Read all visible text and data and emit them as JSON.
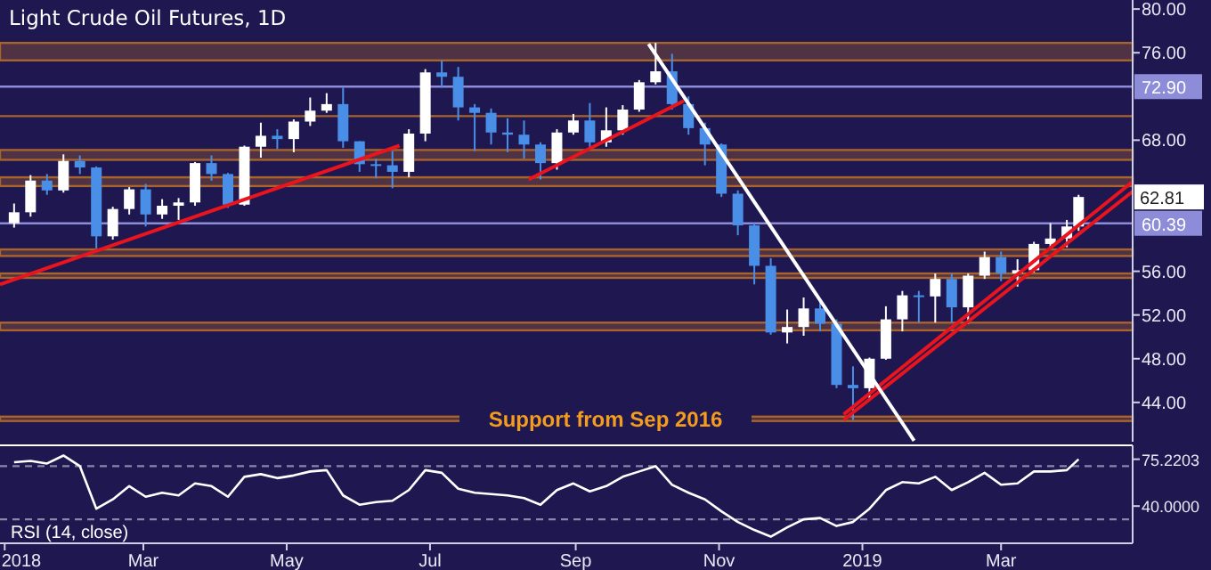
{
  "chart_data": [
    {
      "type": "candlestick",
      "title": "Light Crude Oil Futures, 1D",
      "tick_labels": "y",
      "xlim": [
        "2017-12-30",
        "2019-04-26"
      ],
      "ylim": [
        40.4,
        80.5
      ],
      "yticks": [
        {
          "value": 44,
          "label": "44.00"
        },
        {
          "value": 48,
          "label": "48.00"
        },
        {
          "value": 52,
          "label": "52.00"
        },
        {
          "value": 56,
          "label": "56.00"
        },
        {
          "value": 68,
          "label": "68.00"
        },
        {
          "value": 76,
          "label": "76.00"
        },
        {
          "value": 80,
          "label": "80.00"
        }
      ],
      "x": [
        "2018-01-05",
        "2018-01-12",
        "2018-01-19",
        "2018-01-26",
        "2018-02-02",
        "2018-02-09",
        "2018-02-16",
        "2018-02-23",
        "2018-03-02",
        "2018-03-09",
        "2018-03-16",
        "2018-03-23",
        "2018-03-30",
        "2018-04-06",
        "2018-04-13",
        "2018-04-20",
        "2018-04-27",
        "2018-05-04",
        "2018-05-11",
        "2018-05-18",
        "2018-05-25",
        "2018-06-01",
        "2018-06-08",
        "2018-06-15",
        "2018-06-22",
        "2018-06-29",
        "2018-07-06",
        "2018-07-13",
        "2018-07-20",
        "2018-07-27",
        "2018-08-03",
        "2018-08-10",
        "2018-08-17",
        "2018-08-24",
        "2018-08-31",
        "2018-09-07",
        "2018-09-14",
        "2018-09-21",
        "2018-09-28",
        "2018-10-05",
        "2018-10-12",
        "2018-10-19",
        "2018-10-26",
        "2018-11-02",
        "2018-11-09",
        "2018-11-16",
        "2018-11-23",
        "2018-11-30",
        "2018-12-07",
        "2018-12-14",
        "2018-12-21",
        "2018-12-28",
        "2019-01-04",
        "2019-01-11",
        "2019-01-18",
        "2019-01-25",
        "2019-02-01",
        "2019-02-08",
        "2019-02-15",
        "2019-02-22",
        "2019-03-01",
        "2019-03-08",
        "2019-03-15",
        "2019-03-22",
        "2019-03-29",
        "2019-04-03"
      ],
      "ohlc": [
        [
          60.4,
          62.2,
          60.0,
          61.4
        ],
        [
          61.4,
          64.8,
          61.0,
          64.3
        ],
        [
          64.3,
          64.9,
          63.0,
          63.4
        ],
        [
          63.4,
          66.7,
          63.2,
          66.1
        ],
        [
          66.1,
          66.6,
          64.9,
          65.5
        ],
        [
          65.5,
          65.6,
          58.1,
          59.2
        ],
        [
          59.2,
          61.9,
          58.9,
          61.7
        ],
        [
          61.7,
          63.7,
          61.2,
          63.5
        ],
        [
          63.5,
          64.0,
          60.1,
          61.2
        ],
        [
          61.2,
          62.6,
          60.8,
          62.0
        ],
        [
          62.0,
          62.7,
          60.7,
          62.3
        ],
        [
          62.3,
          66.0,
          62.0,
          65.9
        ],
        [
          65.9,
          66.6,
          64.3,
          64.9
        ],
        [
          64.9,
          65.0,
          61.8,
          62.1
        ],
        [
          62.1,
          67.5,
          62.0,
          67.4
        ],
        [
          67.4,
          69.6,
          66.4,
          68.4
        ],
        [
          68.4,
          69.0,
          67.2,
          68.1
        ],
        [
          68.1,
          69.9,
          66.9,
          69.7
        ],
        [
          69.7,
          71.9,
          69.3,
          70.7
        ],
        [
          70.7,
          72.3,
          70.5,
          71.3
        ],
        [
          71.3,
          72.8,
          67.3,
          67.9
        ],
        [
          67.9,
          67.9,
          65.1,
          65.8
        ],
        [
          65.8,
          66.3,
          64.5,
          65.7
        ],
        [
          65.7,
          67.0,
          63.6,
          65.1
        ],
        [
          65.1,
          69.0,
          64.6,
          68.6
        ],
        [
          68.6,
          74.5,
          67.9,
          74.2
        ],
        [
          74.2,
          75.3,
          72.8,
          73.8
        ],
        [
          73.8,
          74.7,
          69.8,
          71.0
        ],
        [
          71.0,
          71.3,
          67.0,
          70.5
        ],
        [
          70.5,
          70.9,
          67.6,
          68.7
        ],
        [
          68.7,
          70.0,
          66.9,
          68.5
        ],
        [
          68.5,
          69.8,
          66.3,
          67.6
        ],
        [
          67.6,
          67.8,
          64.4,
          65.9
        ],
        [
          65.9,
          69.0,
          65.3,
          68.7
        ],
        [
          68.7,
          70.4,
          68.5,
          69.8
        ],
        [
          69.8,
          71.4,
          67.1,
          67.8
        ],
        [
          67.8,
          71.0,
          67.4,
          68.9
        ],
        [
          68.9,
          71.2,
          68.5,
          70.8
        ],
        [
          70.8,
          73.5,
          70.6,
          73.3
        ],
        [
          73.3,
          76.9,
          73.1,
          74.3
        ],
        [
          74.3,
          75.9,
          70.8,
          71.3
        ],
        [
          71.3,
          72.0,
          68.5,
          69.1
        ],
        [
          69.1,
          69.6,
          65.7,
          67.6
        ],
        [
          67.6,
          67.7,
          62.8,
          63.1
        ],
        [
          63.1,
          63.4,
          59.3,
          60.2
        ],
        [
          60.2,
          60.4,
          54.8,
          56.5
        ],
        [
          56.5,
          57.2,
          50.2,
          50.4
        ],
        [
          50.4,
          52.5,
          49.4,
          50.9
        ],
        [
          50.9,
          53.6,
          50.1,
          52.6
        ],
        [
          52.6,
          53.3,
          50.5,
          51.2
        ],
        [
          51.2,
          51.6,
          45.3,
          45.6
        ],
        [
          45.6,
          47.3,
          42.4,
          45.3
        ],
        [
          45.3,
          48.1,
          44.4,
          48.0
        ],
        [
          48.0,
          52.8,
          47.9,
          51.6
        ],
        [
          51.6,
          54.2,
          50.5,
          53.8
        ],
        [
          53.8,
          54.2,
          51.3,
          53.7
        ],
        [
          53.7,
          55.8,
          51.3,
          55.3
        ],
        [
          55.3,
          55.8,
          51.3,
          52.7
        ],
        [
          52.7,
          55.8,
          51.2,
          55.6
        ],
        [
          55.6,
          57.8,
          55.3,
          57.3
        ],
        [
          57.3,
          57.8,
          55.1,
          55.8
        ],
        [
          55.8,
          57.1,
          54.6,
          56.1
        ],
        [
          56.1,
          58.7,
          55.9,
          58.5
        ],
        [
          58.5,
          60.4,
          58.1,
          59.0
        ],
        [
          59.0,
          60.7,
          58.2,
          60.1
        ],
        [
          60.1,
          63.0,
          59.7,
          62.8
        ]
      ],
      "colors": [
        "#ffffff",
        "#ffffff",
        "#4a8fe7",
        "#ffffff",
        "#4a8fe7",
        "#4a8fe7",
        "#ffffff",
        "#ffffff",
        "#4a8fe7",
        "#ffffff",
        "#ffffff",
        "#ffffff",
        "#4a8fe7",
        "#4a8fe7",
        "#ffffff",
        "#ffffff",
        "#4a8fe7",
        "#ffffff",
        "#ffffff",
        "#ffffff",
        "#4a8fe7",
        "#4a8fe7",
        "#4a8fe7",
        "#4a8fe7",
        "#ffffff",
        "#ffffff",
        "#4a8fe7",
        "#4a8fe7",
        "#4a8fe7",
        "#4a8fe7",
        "#4a8fe7",
        "#4a8fe7",
        "#4a8fe7",
        "#ffffff",
        "#ffffff",
        "#4a8fe7",
        "#ffffff",
        "#ffffff",
        "#ffffff",
        "#ffffff",
        "#4a8fe7",
        "#4a8fe7",
        "#4a8fe7",
        "#4a8fe7",
        "#4a8fe7",
        "#4a8fe7",
        "#4a8fe7",
        "#ffffff",
        "#ffffff",
        "#4a8fe7",
        "#4a8fe7",
        "#4a8fe7",
        "#ffffff",
        "#ffffff",
        "#ffffff",
        "#4a8fe7",
        "#ffffff",
        "#4a8fe7",
        "#ffffff",
        "#ffffff",
        "#4a8fe7",
        "#ffffff",
        "#ffffff",
        "#ffffff",
        "#ffffff",
        "#ffffff"
      ],
      "series": [
        {
          "type": "line",
          "x": [
            "2017-12-30",
            "2018-06-18"
          ],
          "values": [
            54.8,
            67.5
          ],
          "color": "#e8141e"
        },
        {
          "type": "line",
          "x": [
            "2018-08-12",
            "2018-10-17"
          ],
          "values": [
            64.4,
            71.6
          ],
          "color": "#e8141e"
        },
        {
          "type": "line",
          "x": [
            "2018-12-24",
            "2019-04-26"
          ],
          "values": [
            42.9,
            64.2
          ],
          "color": "#e8141e"
        },
        {
          "type": "line",
          "x": [
            "2018-12-24",
            "2019-04-26"
          ],
          "values": [
            42.4,
            63.3
          ],
          "color": "#e8141e"
        },
        {
          "type": "line",
          "x": [
            "2018-10-02",
            "2019-01-23"
          ],
          "values": [
            76.8,
            40.5
          ],
          "color": "#ffffff"
        }
      ],
      "bands": [
        {
          "axis": "y",
          "from": 75.3,
          "to": 76.9,
          "color": "#a8642c"
        },
        {
          "axis": "y",
          "from": 66.2,
          "to": 67.1,
          "color": "#a8642c"
        },
        {
          "axis": "y",
          "from": 63.8,
          "to": 64.6,
          "color": "#a8642c"
        },
        {
          "axis": "y",
          "from": 57.4,
          "to": 58.0,
          "color": "#a8642c"
        },
        {
          "axis": "y",
          "from": 55.4,
          "to": 55.8,
          "color": "#a8642c"
        },
        {
          "axis": "y",
          "from": 50.6,
          "to": 51.3,
          "color": "#a8642c"
        },
        {
          "axis": "y",
          "from": 42.3,
          "to": 42.7,
          "color": "#a8642c",
          "label": "Support from Sep 2016"
        }
      ],
      "ref_lines": [
        {
          "axis": "y",
          "value": 70.2,
          "color": "#a8642c"
        },
        {
          "axis": "y",
          "value": 72.9,
          "label": "72.90",
          "color": "#8c8cd8"
        },
        {
          "axis": "y",
          "value": 60.39,
          "label": "60.39",
          "color": "#8c8cd8"
        }
      ],
      "annotations": [
        "62.81"
      ]
    },
    {
      "type": "line",
      "xlim": [
        "2017-12-30",
        "2019-04-26"
      ],
      "ylim": [
        12,
        83
      ],
      "yticks": [
        {
          "value": 40,
          "label": "40.0000"
        },
        {
          "value": 75.2203,
          "label": "75.2203"
        }
      ],
      "xticks": [
        {
          "value": "2018-01-01",
          "label": "2018"
        },
        {
          "value": "2018-03-01",
          "label": "Mar"
        },
        {
          "value": "2018-05-01",
          "label": "May"
        },
        {
          "value": "2018-07-01",
          "label": "Jul"
        },
        {
          "value": "2018-09-01",
          "label": "Sep"
        },
        {
          "value": "2018-11-01",
          "label": "Nov"
        },
        {
          "value": "2019-01-01",
          "label": "2019"
        },
        {
          "value": "2019-03-01",
          "label": "Mar"
        }
      ],
      "legend": "bottom left",
      "x": [
        "2018-01-05",
        "2018-01-12",
        "2018-01-19",
        "2018-01-26",
        "2018-02-02",
        "2018-02-09",
        "2018-02-16",
        "2018-02-23",
        "2018-03-02",
        "2018-03-09",
        "2018-03-16",
        "2018-03-23",
        "2018-03-30",
        "2018-04-06",
        "2018-04-13",
        "2018-04-20",
        "2018-04-27",
        "2018-05-04",
        "2018-05-11",
        "2018-05-18",
        "2018-05-25",
        "2018-06-01",
        "2018-06-08",
        "2018-06-15",
        "2018-06-22",
        "2018-06-29",
        "2018-07-06",
        "2018-07-13",
        "2018-07-20",
        "2018-07-27",
        "2018-08-03",
        "2018-08-10",
        "2018-08-17",
        "2018-08-24",
        "2018-08-31",
        "2018-09-07",
        "2018-09-14",
        "2018-09-21",
        "2018-09-28",
        "2018-10-05",
        "2018-10-12",
        "2018-10-19",
        "2018-10-26",
        "2018-11-02",
        "2018-11-09",
        "2018-11-16",
        "2018-11-23",
        "2018-11-30",
        "2018-12-07",
        "2018-12-14",
        "2018-12-21",
        "2018-12-28",
        "2019-01-04",
        "2019-01-11",
        "2019-01-18",
        "2019-01-25",
        "2019-02-01",
        "2019-02-08",
        "2019-02-15",
        "2019-02-22",
        "2019-03-01",
        "2019-03-08",
        "2019-03-15",
        "2019-03-22",
        "2019-03-29",
        "2019-04-03"
      ],
      "series": [
        {
          "name": "RSI (14, close)",
          "color": "#ffffff",
          "values": [
            73,
            74,
            72,
            78,
            70,
            38,
            45,
            55,
            47,
            50,
            48,
            57,
            55,
            47,
            62,
            64,
            61,
            63,
            66,
            67,
            48,
            41,
            43,
            44,
            52,
            67,
            65,
            53,
            50,
            49,
            48,
            46,
            41,
            52,
            57,
            51,
            55,
            62,
            66,
            70,
            56,
            50,
            45,
            36,
            28,
            22,
            17,
            24,
            30,
            31,
            25,
            28,
            38,
            52,
            58,
            57,
            62,
            52,
            58,
            65,
            56,
            57,
            66,
            66,
            67,
            75.2203
          ]
        }
      ],
      "ref_lines": [
        {
          "axis": "y",
          "value": 70,
          "color": "#8a86a8",
          "line_style": "dashed"
        },
        {
          "axis": "y",
          "value": 30,
          "color": "#8a86a8",
          "line_style": "dashed"
        }
      ]
    }
  ]
}
